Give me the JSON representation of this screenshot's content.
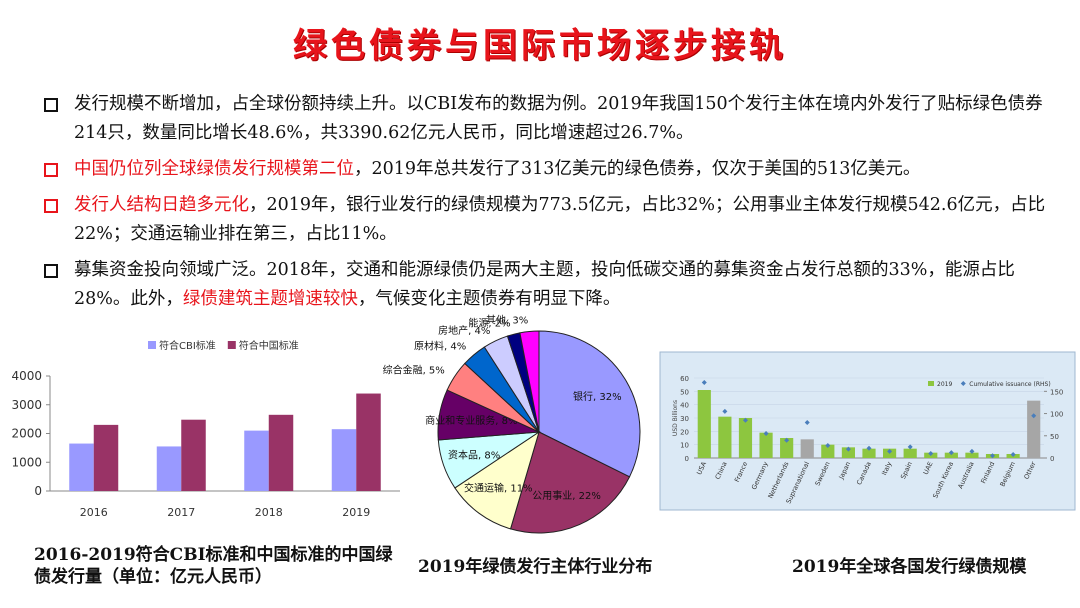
{
  "title": "绿色债券与国际市场逐步接轨",
  "bullets": [
    {
      "marker_color": "#111111",
      "runs": [
        {
          "text": "发行规模不断增加，占全球份额持续上升。以CBI发布的数据为例。2019年我国150个发行主体在境内外发行了贴标绿色债券214只，数量同比增长48.6%，共3390.62亿元人民币，同比增速超过26.7%。",
          "color": "#111111"
        }
      ]
    },
    {
      "marker_color": "#e8141b",
      "runs": [
        {
          "text": "中国仍位列全球绿债发行规模第二位",
          "color": "#e8141b"
        },
        {
          "text": "，2019年总共发行了313亿美元的绿色债券，仅次于美国的513亿美元。",
          "color": "#111111"
        }
      ]
    },
    {
      "marker_color": "#e8141b",
      "runs": [
        {
          "text": "发行人结构日趋多元化",
          "color": "#e8141b"
        },
        {
          "text": "，2019年，银行业发行的绿债规模为773.5亿元，占比32%；公用事业主体发行规模542.6亿元，占比22%；交通运输业排在第三，占比11%。",
          "color": "#111111"
        }
      ]
    },
    {
      "marker_color": "#111111",
      "runs": [
        {
          "text": "募集资金投向领域广泛。2018年，交通和能源绿债仍是两大主题，投向低碳交通的募集资金占发行总额的33%，能源占比28%。此外，",
          "color": "#111111"
        },
        {
          "text": "绿债建筑主题增速较快",
          "color": "#e8141b"
        },
        {
          "text": "，气候变化主题债券有明显下降。",
          "color": "#111111"
        }
      ]
    }
  ],
  "chart_data": [
    {
      "type": "bar",
      "caption": "2016-2019符合CBI标准和中国标准的中国绿债发行量（单位：亿元人民币）",
      "categories": [
        "2016",
        "2017",
        "2018",
        "2019"
      ],
      "series": [
        {
          "name": "符合CBI标准",
          "color": "#9999ff",
          "values": [
            1650,
            1550,
            2100,
            2150
          ]
        },
        {
          "name": "符合中国标准",
          "color": "#993366",
          "values": [
            2300,
            2480,
            2650,
            3390
          ]
        }
      ],
      "ylim": [
        0,
        4000
      ],
      "yticks": [
        0,
        1000,
        2000,
        3000,
        4000
      ],
      "legend": "top"
    },
    {
      "type": "pie",
      "caption": "2019年绿债发行主体行业分布",
      "categories": [
        "银行",
        "公用事业",
        "交通运输",
        "资本品",
        "商业和专业服务",
        "综合金融",
        "原材料",
        "房地产",
        "能源",
        "其他"
      ],
      "values": [
        32,
        22,
        11,
        8,
        8,
        5,
        4,
        4,
        2,
        3
      ],
      "value_labels": [
        "银行, 32%",
        "公用事业, 22%",
        "交通运输, 11%",
        "资本品, 8%",
        "商业和专业服务, 8%",
        "综合金融, 5%",
        "原材料, 4%",
        "房地产, 4%",
        "能源, 2%",
        "其他, 3%"
      ],
      "colors": [
        "#9999ff",
        "#993366",
        "#ffffcc",
        "#ccffff",
        "#660066",
        "#ff8080",
        "#0066cc",
        "#ccccff",
        "#000080",
        "#ff00ff"
      ]
    },
    {
      "type": "bar",
      "caption": "2019年全球各国发行绿债规模",
      "ylabel": "USD Billions",
      "categories": [
        "USA",
        "China",
        "France",
        "Germany",
        "Netherlands",
        "Supranational",
        "Sweden",
        "Japan",
        "Canada",
        "Italy",
        "Spain",
        "UAE",
        "South Korea",
        "Australia",
        "Finland",
        "Belgium",
        "Other"
      ],
      "series": [
        {
          "name": "2019",
          "type": "bar",
          "colors": [
            "#8dc63f",
            "#8dc63f",
            "#8dc63f",
            "#8dc63f",
            "#8dc63f",
            "#a6a6a6",
            "#8dc63f",
            "#8dc63f",
            "#8dc63f",
            "#8dc63f",
            "#8dc63f",
            "#8dc63f",
            "#8dc63f",
            "#8dc63f",
            "#8dc63f",
            "#8dc63f",
            "#a6a6a6"
          ],
          "color": "#8dc63f",
          "values": [
            51,
            31,
            30,
            19,
            15,
            14,
            10,
            8,
            7,
            7,
            7,
            4,
            4,
            4,
            3,
            3,
            43
          ]
        },
        {
          "name": "Cumulative issuance (RHS)",
          "type": "scatter",
          "axis": "y2",
          "color": "#4a7ebb",
          "values": [
            170,
            105,
            85,
            55,
            40,
            80,
            28,
            20,
            22,
            15,
            25,
            10,
            12,
            15,
            5,
            8,
            95
          ]
        }
      ],
      "ylim": [
        0,
        60
      ],
      "yticks": [
        0,
        10,
        20,
        30,
        40,
        50,
        60
      ],
      "y2lim": [
        0,
        180
      ],
      "y2ticks": [
        0,
        50,
        100,
        150
      ],
      "legend": "top-right"
    }
  ]
}
